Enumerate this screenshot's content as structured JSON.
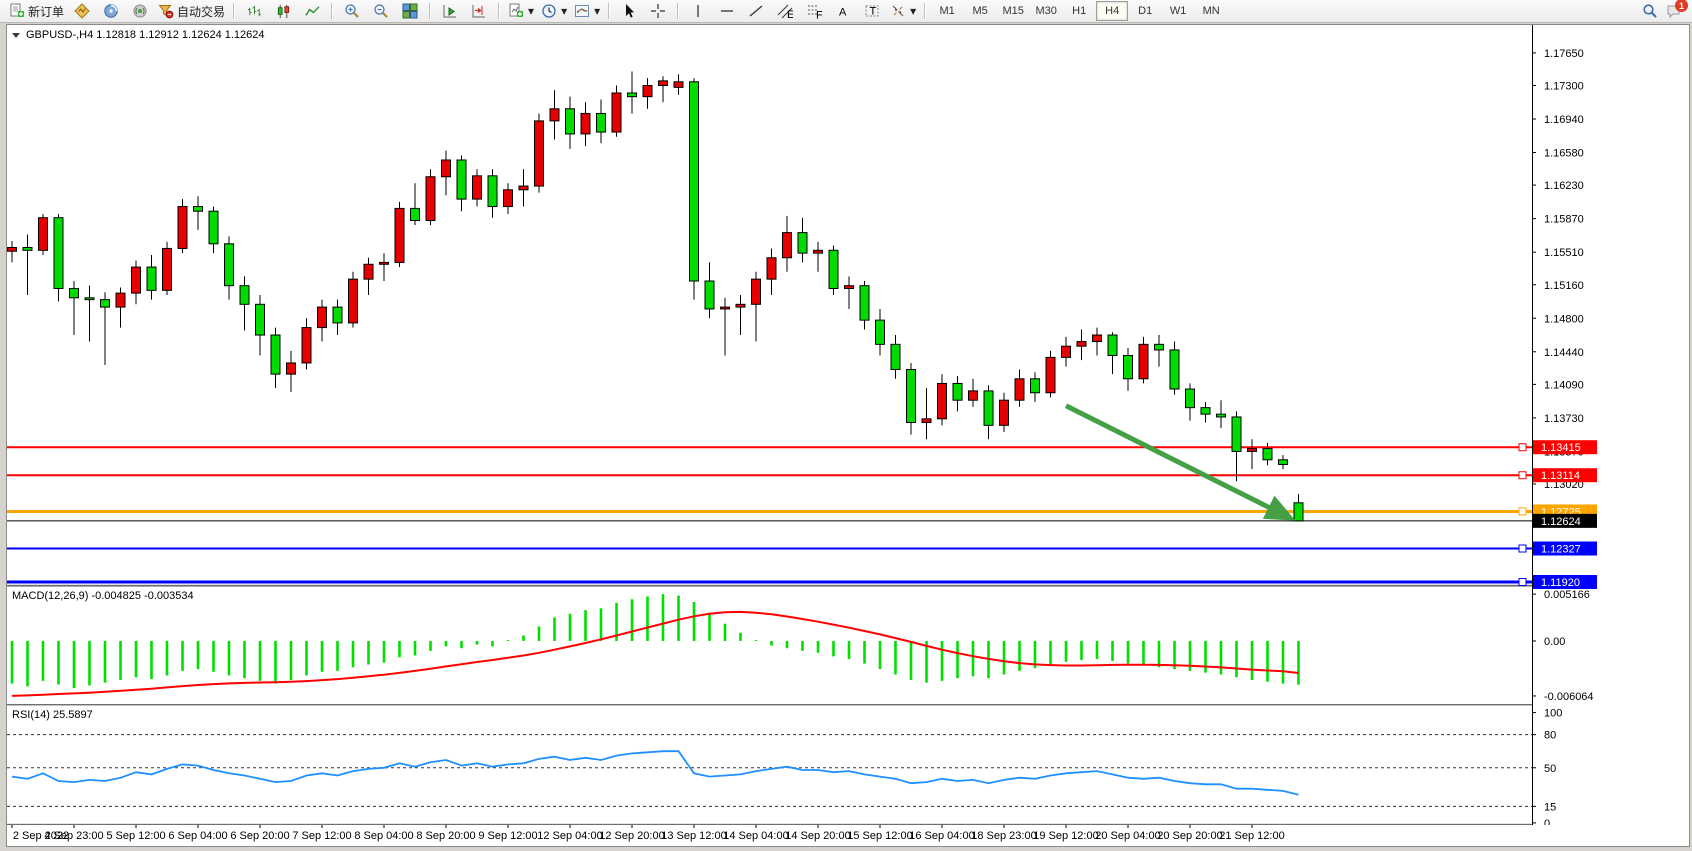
{
  "toolbar": {
    "new_order_label": "新订单",
    "autotrading_label": "自动交易",
    "timeframes": [
      "M1",
      "M5",
      "M15",
      "M30",
      "H1",
      "H4",
      "D1",
      "W1",
      "MN"
    ],
    "active_timeframe": "H4",
    "badge_count": "1",
    "icons": [
      "new-order-icon",
      "market-watch-icon",
      "navigator-icon",
      "terminal-icon",
      "autotrading-icon",
      "bar-chart-icon",
      "candlestick-icon",
      "line-chart-icon",
      "zoom-in-icon",
      "zoom-out-icon",
      "tile-windows-icon",
      "auto-scroll-icon",
      "chart-shift-icon",
      "new-chart-icon",
      "profiles-icon",
      "templates-icon",
      "cursor-icon",
      "crosshair-icon",
      "vertical-line-icon",
      "horizontal-line-icon",
      "trendline-icon",
      "channel-icon",
      "fibonacci-icon",
      "text-icon",
      "text-label-icon",
      "arrows-icon",
      "search-icon",
      "chat-icon"
    ]
  },
  "chart_data": {
    "type": "candlestick",
    "symbol": "GBPUSD-",
    "timeframe": "H4",
    "title_text": "GBPUSD-,H4  1.12818 1.12912 1.12624 1.12624",
    "ohlc": {
      "open": "1.12818",
      "high": "1.12912",
      "low": "1.12624",
      "close": "1.12624"
    },
    "colors": {
      "up": "#e60000",
      "down": "#00dc00",
      "wick": "#000000",
      "macd_hist": "#00e000",
      "macd_signal": "#ff0000",
      "rsi_line": "#1e90ff",
      "arrow": "#45a045",
      "axis_text": "#000000",
      "background": "#ffffff"
    },
    "main": {
      "price_max": 1.1795,
      "price_min": 1.11935,
      "ticks": [
        "1.17650",
        "1.17300",
        "1.16940",
        "1.16580",
        "1.16230",
        "1.15870",
        "1.15510",
        "1.15160",
        "1.14800",
        "1.14440",
        "1.14090",
        "1.13730",
        "1.13370",
        "1.13020"
      ],
      "hlines": [
        {
          "price": 1.13415,
          "label": "1.13415",
          "color": "#ff0000",
          "width": 2
        },
        {
          "price": 1.13114,
          "label": "1.13114",
          "color": "#ff0000",
          "width": 2
        },
        {
          "price": 1.12725,
          "label": "1.12725",
          "color": "#ffa500",
          "width": 3
        },
        {
          "price": 1.12327,
          "label": "1.12327",
          "color": "#0000ff",
          "width": 2
        },
        {
          "price": 1.1192,
          "label": "1.11920",
          "color": "#0000ff",
          "width": 3
        }
      ],
      "current_price": {
        "price": 1.12624,
        "label": "1.12624",
        "color": "#000000"
      },
      "arrow": {
        "from_index": 68,
        "from_price": 1.1386,
        "to_index": 82.4,
        "to_price": 1.1266,
        "color": "#45a045"
      },
      "candles": [
        [
          1.1552,
          1.1563,
          1.154,
          1.1556
        ],
        [
          1.1556,
          1.157,
          1.1505,
          1.1553
        ],
        [
          1.1553,
          1.1592,
          1.1548,
          1.1588
        ],
        [
          1.1588,
          1.1592,
          1.1498,
          1.1512
        ],
        [
          1.1512,
          1.152,
          1.1462,
          1.1502
        ],
        [
          1.1502,
          1.1515,
          1.1455,
          1.15
        ],
        [
          1.15,
          1.1508,
          1.143,
          1.1492
        ],
        [
          1.1492,
          1.1513,
          1.147,
          1.1507
        ],
        [
          1.1507,
          1.1542,
          1.1495,
          1.1535
        ],
        [
          1.1535,
          1.1548,
          1.15,
          1.151
        ],
        [
          1.151,
          1.1562,
          1.1505,
          1.1555
        ],
        [
          1.1555,
          1.1608,
          1.155,
          1.16
        ],
        [
          1.16,
          1.1611,
          1.1575,
          1.1595
        ],
        [
          1.1595,
          1.16,
          1.155,
          1.156
        ],
        [
          1.156,
          1.1568,
          1.15,
          1.1515
        ],
        [
          1.1515,
          1.1525,
          1.1467,
          1.1495
        ],
        [
          1.1495,
          1.1505,
          1.144,
          1.1462
        ],
        [
          1.1462,
          1.147,
          1.1405,
          1.142
        ],
        [
          1.142,
          1.1445,
          1.1401,
          1.1432
        ],
        [
          1.1432,
          1.148,
          1.1425,
          1.147
        ],
        [
          1.147,
          1.15,
          1.1455,
          1.1492
        ],
        [
          1.1492,
          1.15,
          1.1462,
          1.1475
        ],
        [
          1.1475,
          1.153,
          1.147,
          1.1522
        ],
        [
          1.1522,
          1.1545,
          1.1505,
          1.1538
        ],
        [
          1.1538,
          1.155,
          1.152,
          1.154
        ],
        [
          1.154,
          1.1605,
          1.1535,
          1.1598
        ],
        [
          1.1598,
          1.1625,
          1.158,
          1.1585
        ],
        [
          1.1585,
          1.164,
          1.158,
          1.1632
        ],
        [
          1.1632,
          1.166,
          1.1612,
          1.165
        ],
        [
          1.165,
          1.1655,
          1.1595,
          1.1608
        ],
        [
          1.1608,
          1.164,
          1.16,
          1.1633
        ],
        [
          1.1633,
          1.164,
          1.1588,
          1.16
        ],
        [
          1.16,
          1.1625,
          1.1592,
          1.1618
        ],
        [
          1.1618,
          1.164,
          1.16,
          1.1622
        ],
        [
          1.1622,
          1.17,
          1.1615,
          1.1692
        ],
        [
          1.1692,
          1.1725,
          1.1672,
          1.1705
        ],
        [
          1.1705,
          1.1718,
          1.1662,
          1.1678
        ],
        [
          1.1678,
          1.1712,
          1.1665,
          1.17
        ],
        [
          1.17,
          1.1715,
          1.1668,
          1.168
        ],
        [
          1.168,
          1.173,
          1.1675,
          1.1722
        ],
        [
          1.1722,
          1.1745,
          1.17,
          1.1718
        ],
        [
          1.1718,
          1.1738,
          1.1705,
          1.173
        ],
        [
          1.173,
          1.174,
          1.1712,
          1.1735
        ],
        [
          1.1728,
          1.1742,
          1.172,
          1.1734
        ],
        [
          1.1734,
          1.1738,
          1.15,
          1.152
        ],
        [
          1.152,
          1.154,
          1.148,
          1.149
        ],
        [
          1.149,
          1.1502,
          1.144,
          1.1492
        ],
        [
          1.1492,
          1.1505,
          1.1462,
          1.1495
        ],
        [
          1.1495,
          1.153,
          1.1455,
          1.1522
        ],
        [
          1.1522,
          1.1555,
          1.1505,
          1.1545
        ],
        [
          1.1545,
          1.159,
          1.153,
          1.1572
        ],
        [
          1.1572,
          1.1588,
          1.154,
          1.155
        ],
        [
          1.155,
          1.1562,
          1.153,
          1.1553
        ],
        [
          1.1553,
          1.1558,
          1.1505,
          1.1512
        ],
        [
          1.1512,
          1.1525,
          1.149,
          1.1515
        ],
        [
          1.1515,
          1.152,
          1.1468,
          1.1478
        ],
        [
          1.1478,
          1.149,
          1.144,
          1.1452
        ],
        [
          1.1452,
          1.1462,
          1.1415,
          1.1425
        ],
        [
          1.1425,
          1.1432,
          1.1355,
          1.1368
        ],
        [
          1.1368,
          1.1405,
          1.135,
          1.1372
        ],
        [
          1.1372,
          1.142,
          1.1365,
          1.141
        ],
        [
          1.141,
          1.1418,
          1.138,
          1.1392
        ],
        [
          1.1392,
          1.1415,
          1.1385,
          1.1402
        ],
        [
          1.1402,
          1.1408,
          1.135,
          1.1365
        ],
        [
          1.1365,
          1.14,
          1.1358,
          1.1392
        ],
        [
          1.1392,
          1.1425,
          1.1385,
          1.1415
        ],
        [
          1.1415,
          1.1422,
          1.139,
          1.14
        ],
        [
          1.14,
          1.1445,
          1.1395,
          1.1438
        ],
        [
          1.1438,
          1.146,
          1.1428,
          1.145
        ],
        [
          1.145,
          1.1468,
          1.1435,
          1.1455
        ],
        [
          1.1455,
          1.147,
          1.144,
          1.1462
        ],
        [
          1.1462,
          1.1465,
          1.142,
          1.144
        ],
        [
          1.144,
          1.1448,
          1.1402,
          1.1415
        ],
        [
          1.1415,
          1.146,
          1.141,
          1.1452
        ],
        [
          1.1452,
          1.1462,
          1.1428,
          1.1446
        ],
        [
          1.1446,
          1.1455,
          1.1398,
          1.1404
        ],
        [
          1.1404,
          1.141,
          1.137,
          1.1384
        ],
        [
          1.1384,
          1.139,
          1.1368,
          1.1377
        ],
        [
          1.1377,
          1.1392,
          1.1362,
          1.1374
        ],
        [
          1.1374,
          1.138,
          1.1305,
          1.1337
        ],
        [
          1.1337,
          1.135,
          1.1318,
          1.134
        ],
        [
          1.134,
          1.1346,
          1.1322,
          1.1328
        ],
        [
          1.1328,
          1.1333,
          1.1318,
          1.1323
        ],
        [
          1.12818,
          1.12912,
          1.12624,
          1.12624
        ]
      ]
    },
    "macd": {
      "label_text": "MACD(12,26,9) -0.004825 -0.003534",
      "params": "12,26,9",
      "value_main": "-0.004825",
      "value_signal": "-0.003534",
      "max": 0.00595,
      "min": -0.00684,
      "scale_labels": [
        "0.005166",
        "0.00",
        "-0.006064"
      ],
      "histogram": [
        -0.0047,
        -0.005,
        -0.0044,
        -0.0048,
        -0.0052,
        -0.0049,
        -0.0046,
        -0.0043,
        -0.004,
        -0.0042,
        -0.0038,
        -0.0033,
        -0.0031,
        -0.0034,
        -0.0038,
        -0.0041,
        -0.0044,
        -0.0047,
        -0.0043,
        -0.0038,
        -0.0034,
        -0.0033,
        -0.0029,
        -0.0026,
        -0.0024,
        -0.0018,
        -0.0016,
        -0.0011,
        -0.0006,
        -0.0008,
        -0.0004,
        -0.0006,
        0.0001,
        0.0006,
        0.0016,
        0.0026,
        0.003,
        0.0034,
        0.0036,
        0.0042,
        0.0046,
        0.0049,
        0.00516,
        0.005,
        0.0043,
        0.0031,
        0.0019,
        0.0009,
        0.0001,
        -0.0005,
        -0.0008,
        -0.0011,
        -0.0013,
        -0.0017,
        -0.002,
        -0.0025,
        -0.0031,
        -0.0037,
        -0.0043,
        -0.0046,
        -0.0044,
        -0.0041,
        -0.0039,
        -0.0041,
        -0.0037,
        -0.0033,
        -0.003,
        -0.0026,
        -0.0023,
        -0.0021,
        -0.002,
        -0.0022,
        -0.0025,
        -0.0027,
        -0.0029,
        -0.0031,
        -0.0033,
        -0.0035,
        -0.0037,
        -0.004,
        -0.0043,
        -0.0045,
        -0.0047,
        -0.004825
      ],
      "signal": [
        -0.00606,
        -0.006,
        -0.00592,
        -0.00585,
        -0.00578,
        -0.0057,
        -0.0056,
        -0.0055,
        -0.00538,
        -0.00526,
        -0.00512,
        -0.00498,
        -0.00486,
        -0.00476,
        -0.00468,
        -0.00462,
        -0.00458,
        -0.00455,
        -0.0045,
        -0.00442,
        -0.00432,
        -0.0042,
        -0.00406,
        -0.0039,
        -0.00372,
        -0.00352,
        -0.0033,
        -0.00306,
        -0.0028,
        -0.00256,
        -0.00232,
        -0.0021,
        -0.00186,
        -0.0016,
        -0.0013,
        -0.00096,
        -0.0006,
        -0.00022,
        0.00018,
        0.0006,
        0.00104,
        0.00148,
        0.00192,
        0.00234,
        0.00272,
        0.003,
        0.00316,
        0.0032,
        0.00312,
        0.00294,
        0.0027,
        0.00242,
        0.00212,
        0.0018,
        0.00146,
        0.0011,
        0.00072,
        0.00032,
        -0.0001,
        -0.00054,
        -0.00096,
        -0.00134,
        -0.00168,
        -0.00198,
        -0.00224,
        -0.00244,
        -0.00258,
        -0.00266,
        -0.0027,
        -0.0027,
        -0.00268,
        -0.00264,
        -0.00262,
        -0.00262,
        -0.00264,
        -0.00268,
        -0.00274,
        -0.00282,
        -0.00292,
        -0.00304,
        -0.00316,
        -0.00326,
        -0.00334,
        -0.003534
      ]
    },
    "rsi": {
      "label_text": "RSI(14) 25.5897",
      "period": "14",
      "value": "25.5897",
      "max": 106,
      "min": -1,
      "levels": [
        80,
        50,
        15
      ],
      "scale_labels": [
        "100",
        "80",
        "50",
        "15",
        "0"
      ],
      "values": [
        42,
        40,
        45,
        38,
        37,
        39,
        38,
        41,
        46,
        44,
        49,
        53,
        52,
        48,
        45,
        43,
        40,
        37,
        38,
        43,
        45,
        43,
        47,
        49,
        50,
        54,
        51,
        55,
        57,
        52,
        54,
        51,
        53,
        54,
        58,
        60,
        57,
        59,
        57,
        61,
        63,
        64,
        65,
        65,
        45,
        42,
        43,
        44,
        47,
        49,
        51,
        48,
        48,
        46,
        47,
        44,
        42,
        40,
        36,
        37,
        40,
        38,
        39,
        36,
        39,
        41,
        40,
        43,
        45,
        46,
        47,
        44,
        41,
        40,
        41,
        38,
        36,
        35,
        35,
        31,
        31,
        30,
        29,
        25.5897
      ]
    },
    "time_axis": {
      "tick_step": 4,
      "labels": [
        "2 Sep 2022",
        "4 Sep 23:00",
        "5 Sep 12:00",
        "6 Sep 04:00",
        "6 Sep 20:00",
        "7 Sep 12:00",
        "8 Sep 04:00",
        "8 Sep 20:00",
        "9 Sep 12:00",
        "12 Sep 04:00",
        "12 Sep 20:00",
        "13 Sep 12:00",
        "14 Sep 04:00",
        "14 Sep 20:00",
        "15 Sep 12:00",
        "16 Sep 04:00",
        "18 Sep 23:00",
        "19 Sep 12:00",
        "20 Sep 04:00",
        "20 Sep 20:00",
        "21 Sep 12:00"
      ]
    }
  }
}
